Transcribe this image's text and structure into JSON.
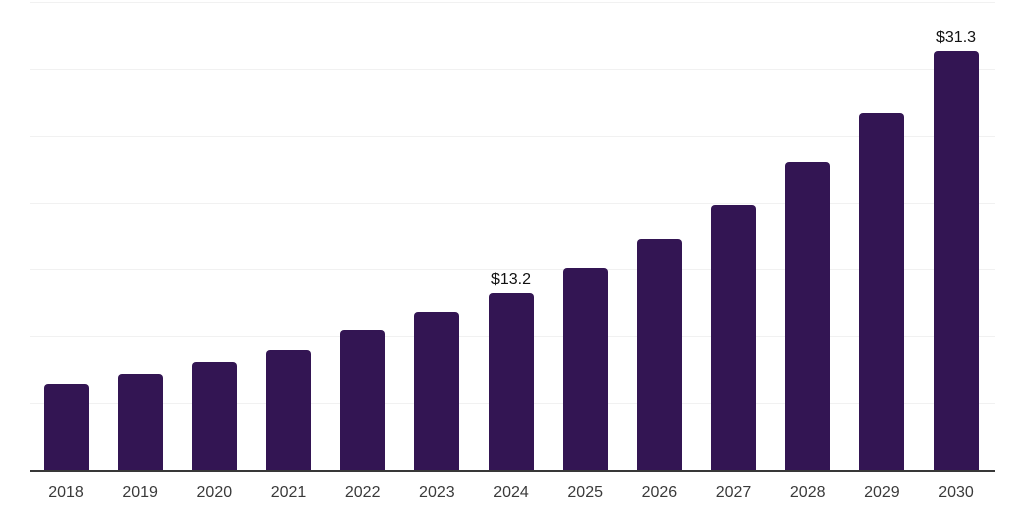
{
  "chart_data": {
    "type": "bar",
    "title": "",
    "xlabel": "",
    "ylabel": "",
    "categories": [
      "2018",
      "2019",
      "2020",
      "2021",
      "2022",
      "2023",
      "2024",
      "2025",
      "2026",
      "2027",
      "2028",
      "2029",
      "2030"
    ],
    "values": [
      6.4,
      7.2,
      8.1,
      9.0,
      10.5,
      11.8,
      13.2,
      15.1,
      17.3,
      19.8,
      23.0,
      26.7,
      31.3
    ],
    "data_labels": [
      {
        "index": 6,
        "text": "$13.2"
      },
      {
        "index": 12,
        "text": "$31.3"
      }
    ],
    "ylim": [
      0,
      35
    ],
    "gridline_step": 5,
    "grid": true,
    "y_axis_labels_visible": false,
    "legend": null,
    "colors": {
      "bar": "#331553",
      "gridline": "#f1f1f1",
      "axis_line": "#383838",
      "x_tick_label": "#3a3a3a",
      "data_label": "#111111",
      "background": "#ffffff"
    }
  }
}
